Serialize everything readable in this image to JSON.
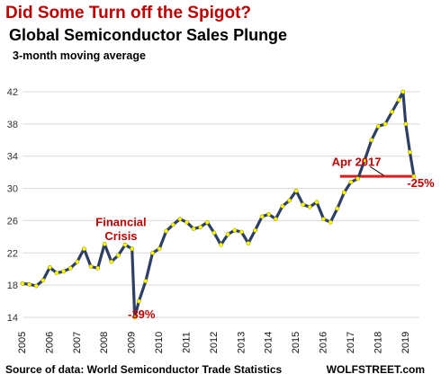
{
  "header": {
    "title": "Did Some Turn off the Spigot?",
    "subtitle": "Global Semiconductor Sales Plunge",
    "subsubtitle": "3-month moving average"
  },
  "footer": {
    "source": "Source of data: World Semiconductor Trade Statistics",
    "brand": "WOLFSTREET.com"
  },
  "colors": {
    "line": "#2e3f66",
    "marker": "#ffff00",
    "marker_edge": "#9a9a00",
    "accent": "#e11a1a",
    "grid": "#d9d9d9"
  },
  "chart_data": {
    "type": "line",
    "title": "Global Semiconductor Sales Plunge",
    "xlabel": "",
    "ylabel": "",
    "ylim": [
      14,
      42
    ],
    "yticks": [
      14,
      18,
      22,
      26,
      30,
      34,
      38,
      42
    ],
    "xlim": [
      2005,
      2019.5
    ],
    "xticks": [
      "2005",
      "2006",
      "2007",
      "2008",
      "2009",
      "2010",
      "2011",
      "2012",
      "2013",
      "2014",
      "2015",
      "2016",
      "2017",
      "2018",
      "2019"
    ],
    "grid": "horizontal",
    "series": [
      {
        "name": "",
        "x": [
          2005.0,
          2005.25,
          2005.5,
          2005.75,
          2006.0,
          2006.25,
          2006.5,
          2006.75,
          2007.0,
          2007.25,
          2007.5,
          2007.75,
          2008.0,
          2008.25,
          2008.5,
          2008.75,
          2009.0,
          2009.1,
          2009.25,
          2009.5,
          2009.75,
          2010.0,
          2010.25,
          2010.5,
          2010.75,
          2011.0,
          2011.25,
          2011.5,
          2011.75,
          2012.0,
          2012.25,
          2012.5,
          2012.75,
          2013.0,
          2013.25,
          2013.5,
          2013.75,
          2014.0,
          2014.25,
          2014.5,
          2014.75,
          2015.0,
          2015.25,
          2015.5,
          2015.75,
          2016.0,
          2016.25,
          2016.5,
          2016.75,
          2017.0,
          2017.25,
          2017.5,
          2017.75,
          2018.0,
          2018.25,
          2018.5,
          2018.75,
          2018.9,
          2019.0,
          2019.15,
          2019.3
        ],
        "values": [
          18.2,
          18.1,
          17.9,
          18.6,
          20.2,
          19.5,
          19.7,
          20.1,
          20.9,
          22.5,
          20.3,
          20.1,
          23.1,
          20.9,
          21.7,
          23.0,
          22.5,
          14.0,
          16.0,
          18.5,
          22.0,
          22.5,
          24.7,
          25.5,
          26.2,
          25.8,
          25.0,
          25.2,
          25.8,
          24.5,
          23.0,
          24.3,
          24.8,
          24.6,
          23.2,
          24.8,
          26.5,
          26.8,
          26.2,
          27.8,
          28.5,
          29.7,
          28.0,
          27.7,
          28.3,
          26.2,
          25.8,
          27.5,
          29.5,
          30.8,
          31.2,
          33.5,
          36.0,
          37.7,
          38.0,
          39.5,
          41.0,
          42.0,
          38.0,
          34.5,
          31.5
        ]
      }
    ],
    "annotations": [
      {
        "text": "Financial",
        "x": 2008.6,
        "y": 25.3
      },
      {
        "text": "Crisis",
        "x": 2008.6,
        "y": 23.6
      },
      {
        "text": "-39%",
        "x": 2009.35,
        "y": 13.9
      },
      {
        "text": "Apr 2017",
        "x": 2017.2,
        "y": 32.8
      },
      {
        "text": "-25%",
        "x": 2019.55,
        "y": 30.2
      }
    ],
    "reference_line": {
      "y": 31.5,
      "x_start": 2016.6,
      "x_end": 2019.3
    },
    "pointer": {
      "from": [
        2017.7,
        32.7
      ],
      "to": [
        2018.2,
        31.6
      ]
    }
  }
}
